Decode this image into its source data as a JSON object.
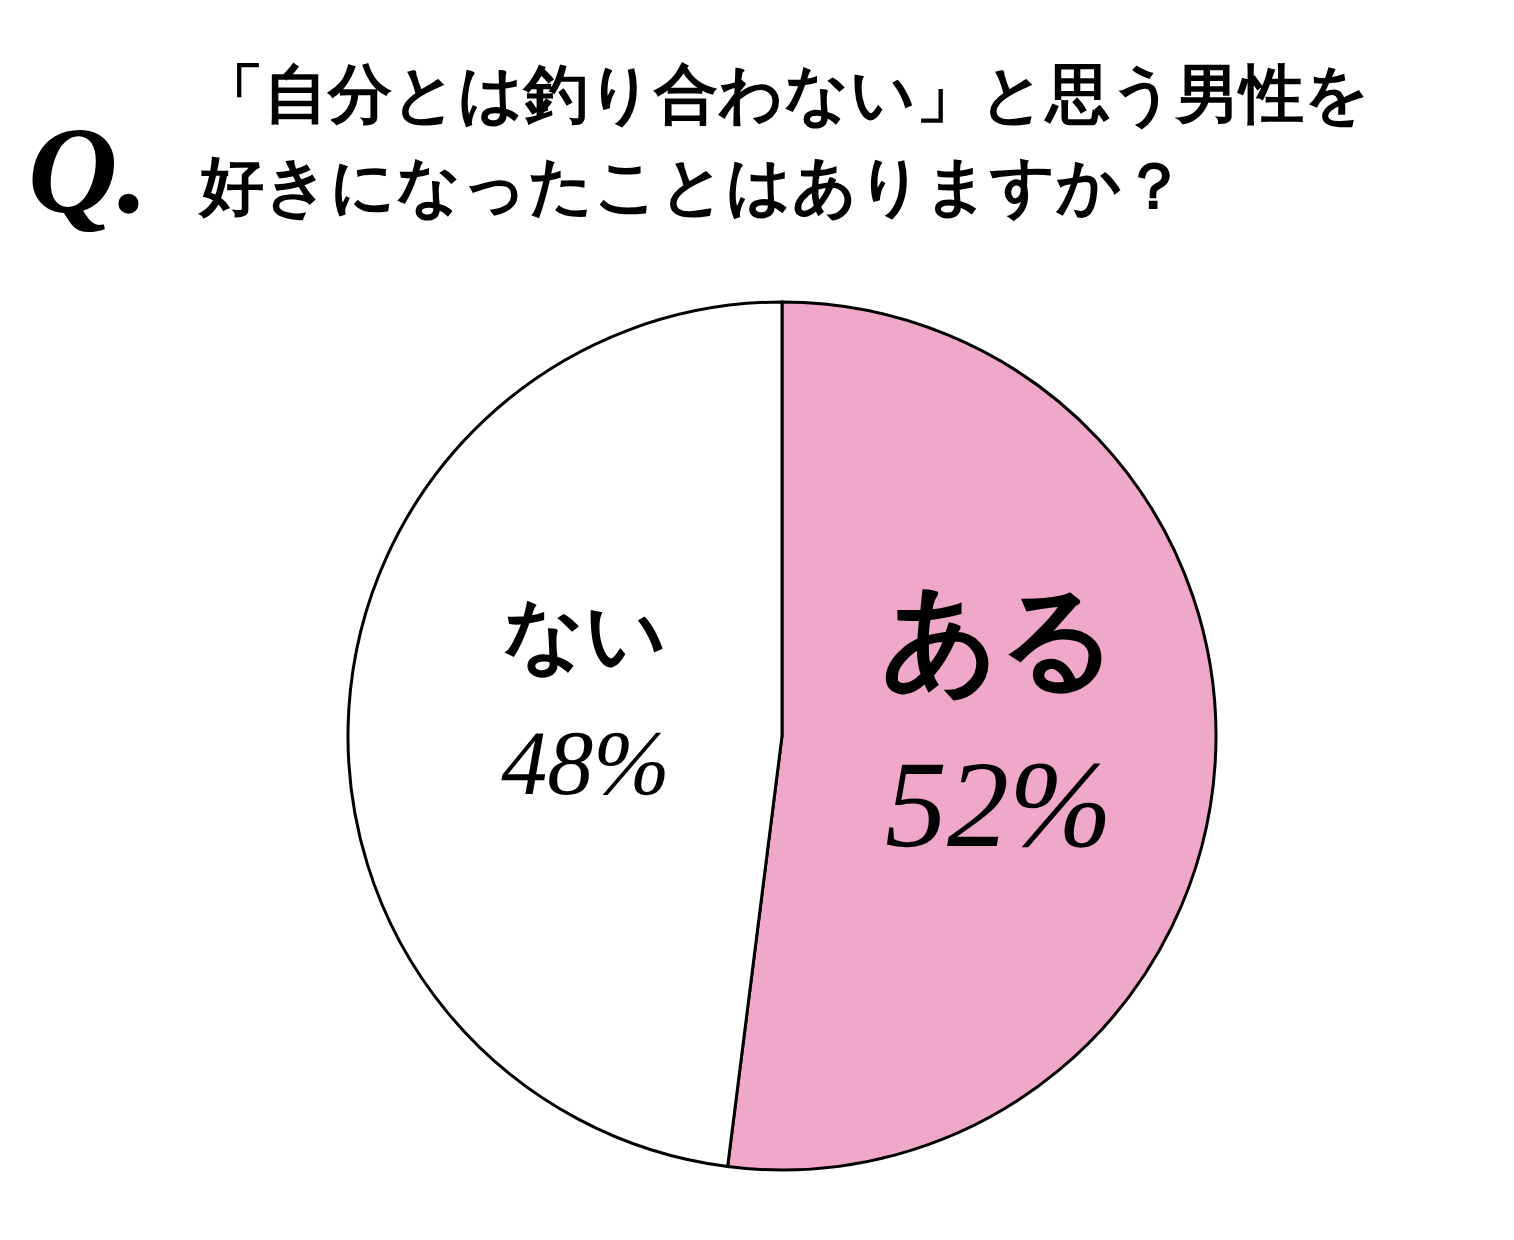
{
  "chart_data": {
    "type": "pie",
    "title": "「自分とは釣り合わない」と思う男性を好きになったことはありますか？",
    "annotations": [
      "Q."
    ],
    "categories": [
      "ある",
      "ない"
    ],
    "values": [
      52,
      48
    ],
    "colors": [
      "#f0a8c8",
      "#ffffff"
    ],
    "value_labels": [
      "52%",
      "48%"
    ]
  }
}
